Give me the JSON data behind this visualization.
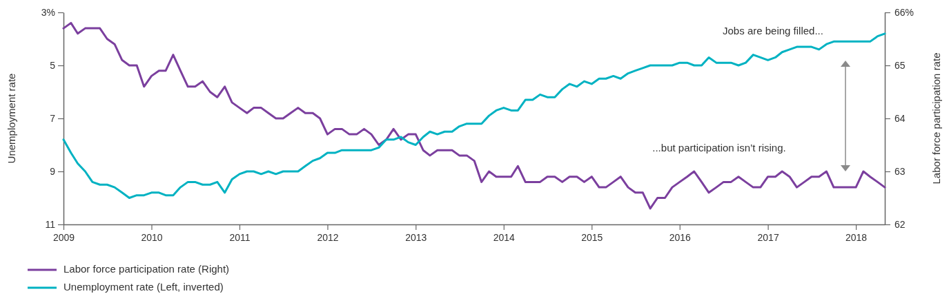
{
  "chart_data": {
    "type": "line",
    "x": [
      "2009-01",
      "2009-02",
      "2009-03",
      "2009-04",
      "2009-05",
      "2009-06",
      "2009-07",
      "2009-08",
      "2009-09",
      "2009-10",
      "2009-11",
      "2009-12",
      "2010-01",
      "2010-02",
      "2010-03",
      "2010-04",
      "2010-05",
      "2010-06",
      "2010-07",
      "2010-08",
      "2010-09",
      "2010-10",
      "2010-11",
      "2010-12",
      "2011-01",
      "2011-02",
      "2011-03",
      "2011-04",
      "2011-05",
      "2011-06",
      "2011-07",
      "2011-08",
      "2011-09",
      "2011-10",
      "2011-11",
      "2011-12",
      "2012-01",
      "2012-02",
      "2012-03",
      "2012-04",
      "2012-05",
      "2012-06",
      "2012-07",
      "2012-08",
      "2012-09",
      "2012-10",
      "2012-11",
      "2012-12",
      "2013-01",
      "2013-02",
      "2013-03",
      "2013-04",
      "2013-05",
      "2013-06",
      "2013-07",
      "2013-08",
      "2013-09",
      "2013-10",
      "2013-11",
      "2013-12",
      "2014-01",
      "2014-02",
      "2014-03",
      "2014-04",
      "2014-05",
      "2014-06",
      "2014-07",
      "2014-08",
      "2014-09",
      "2014-10",
      "2014-11",
      "2014-12",
      "2015-01",
      "2015-02",
      "2015-03",
      "2015-04",
      "2015-05",
      "2015-06",
      "2015-07",
      "2015-08",
      "2015-09",
      "2015-10",
      "2015-11",
      "2015-12",
      "2016-01",
      "2016-02",
      "2016-03",
      "2016-04",
      "2016-05",
      "2016-06",
      "2016-07",
      "2016-08",
      "2016-09",
      "2016-10",
      "2016-11",
      "2016-12",
      "2017-01",
      "2017-02",
      "2017-03",
      "2017-04",
      "2017-05",
      "2017-06",
      "2017-07",
      "2017-08",
      "2017-09",
      "2017-10",
      "2017-11",
      "2017-12",
      "2018-01",
      "2018-02",
      "2018-03",
      "2018-04",
      "2018-05"
    ],
    "series": [
      {
        "name": "Labor force participation rate (Right)",
        "color": "#7b3f9e",
        "axis": "y2",
        "values": [
          65.7,
          65.8,
          65.6,
          65.7,
          65.7,
          65.7,
          65.5,
          65.4,
          65.1,
          65.0,
          65.0,
          64.6,
          64.8,
          64.9,
          64.9,
          65.2,
          64.9,
          64.6,
          64.6,
          64.7,
          64.5,
          64.4,
          64.6,
          64.3,
          64.2,
          64.1,
          64.2,
          64.2,
          64.1,
          64.0,
          64.0,
          64.1,
          64.2,
          64.1,
          64.1,
          64.0,
          63.7,
          63.8,
          63.8,
          63.7,
          63.7,
          63.8,
          63.7,
          63.5,
          63.6,
          63.8,
          63.6,
          63.7,
          63.7,
          63.4,
          63.3,
          63.4,
          63.4,
          63.4,
          63.3,
          63.3,
          63.2,
          62.8,
          63.0,
          62.9,
          62.9,
          62.9,
          63.1,
          62.8,
          62.8,
          62.8,
          62.9,
          62.9,
          62.8,
          62.9,
          62.9,
          62.8,
          62.9,
          62.7,
          62.7,
          62.8,
          62.9,
          62.7,
          62.6,
          62.6,
          62.3,
          62.5,
          62.5,
          62.7,
          62.8,
          62.9,
          63.0,
          62.8,
          62.6,
          62.7,
          62.8,
          62.8,
          62.9,
          62.8,
          62.7,
          62.7,
          62.9,
          62.9,
          63.0,
          62.9,
          62.7,
          62.8,
          62.9,
          62.9,
          63.0,
          62.7,
          62.7,
          62.7,
          62.7,
          63.0,
          62.9,
          62.8,
          62.7
        ]
      },
      {
        "name": "Unemployment rate (Left, inverted)",
        "color": "#00b2c2",
        "values": [
          7.8,
          8.3,
          8.7,
          9.0,
          9.4,
          9.5,
          9.5,
          9.6,
          9.8,
          10.0,
          9.9,
          9.9,
          9.8,
          9.8,
          9.9,
          9.9,
          9.6,
          9.4,
          9.4,
          9.5,
          9.5,
          9.4,
          9.8,
          9.3,
          9.1,
          9.0,
          9.0,
          9.1,
          9.0,
          9.1,
          9.0,
          9.0,
          9.0,
          8.8,
          8.6,
          8.5,
          8.3,
          8.3,
          8.2,
          8.2,
          8.2,
          8.2,
          8.2,
          8.1,
          7.8,
          7.8,
          7.7,
          7.9,
          8.0,
          7.7,
          7.5,
          7.6,
          7.5,
          7.5,
          7.3,
          7.2,
          7.2,
          7.2,
          6.9,
          6.7,
          6.6,
          6.7,
          6.7,
          6.3,
          6.3,
          6.1,
          6.2,
          6.2,
          5.9,
          5.7,
          5.8,
          5.6,
          5.7,
          5.5,
          5.5,
          5.4,
          5.5,
          5.3,
          5.2,
          5.1,
          5.0,
          5.0,
          5.0,
          5.0,
          4.9,
          4.9,
          5.0,
          5.0,
          4.7,
          4.9,
          4.9,
          4.9,
          5.0,
          4.9,
          4.6,
          4.7,
          4.8,
          4.7,
          4.5,
          4.4,
          4.3,
          4.3,
          4.3,
          4.4,
          4.2,
          4.1,
          4.1,
          4.1,
          4.1,
          4.1,
          4.1,
          3.9,
          3.8
        ]
      }
    ],
    "xlim": [
      "2009-01",
      "2018-05"
    ],
    "xticks": [
      "2009",
      "2010",
      "2011",
      "2012",
      "2013",
      "2014",
      "2015",
      "2016",
      "2017",
      "2018"
    ],
    "ylim": [
      11,
      3
    ],
    "yticks": [
      {
        "value": 3,
        "label": "3%"
      },
      5,
      7,
      9,
      11
    ],
    "y2lim": [
      62,
      66
    ],
    "y2ticks": [
      62,
      63,
      64,
      65,
      {
        "value": 66,
        "label": "66%"
      }
    ],
    "ylabel": "Unemployment rate",
    "y2label": "Labor force participation rate",
    "legend": "bottom left",
    "annotations": [
      "Jobs are being filled...",
      "...but participation isn’t rising."
    ]
  }
}
